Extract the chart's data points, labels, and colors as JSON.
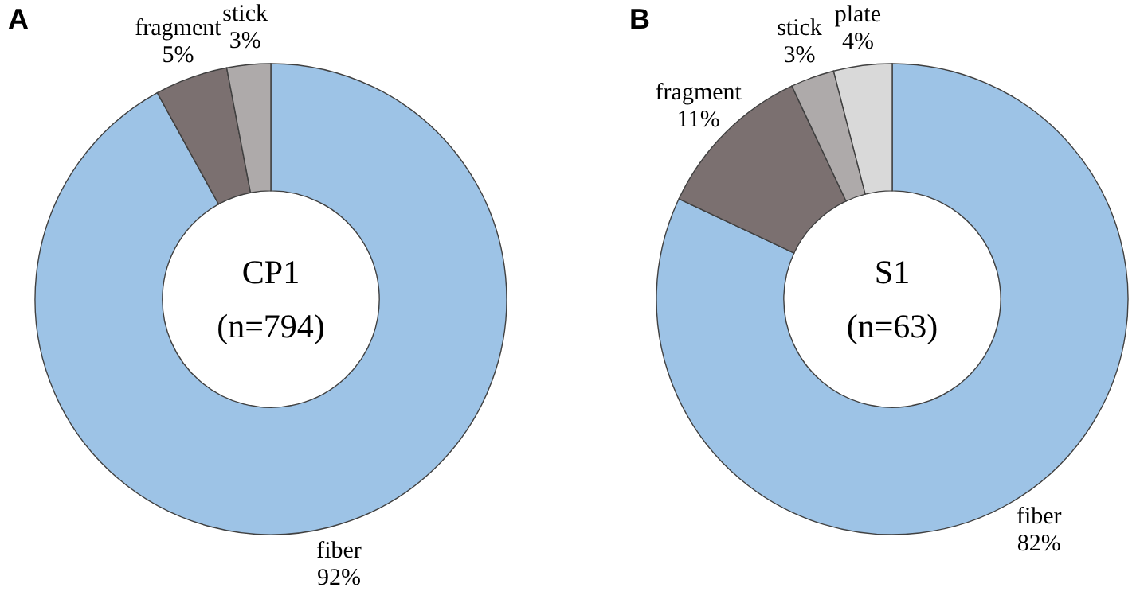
{
  "chart_data": [
    {
      "type": "donut",
      "title": "A",
      "categories": [
        "fiber",
        "fragment",
        "stick"
      ],
      "values": [
        92,
        5,
        3
      ],
      "value_labels": [
        "92%",
        "5%",
        "3%"
      ],
      "colors": [
        "#9dc3e6",
        "#7b7070",
        "#aeaaaa"
      ],
      "annotations": [
        "CP1",
        "(n=794)"
      ]
    },
    {
      "type": "donut",
      "title": "B",
      "categories": [
        "fiber",
        "fragment",
        "stick",
        "plate"
      ],
      "values": [
        82,
        11,
        3,
        4
      ],
      "value_labels": [
        "82%",
        "11%",
        "3%",
        "4%"
      ],
      "colors": [
        "#9dc3e6",
        "#7b7070",
        "#aeaaaa",
        "#d9d9d9"
      ],
      "annotations": [
        "S1",
        "(n=63)"
      ]
    }
  ]
}
